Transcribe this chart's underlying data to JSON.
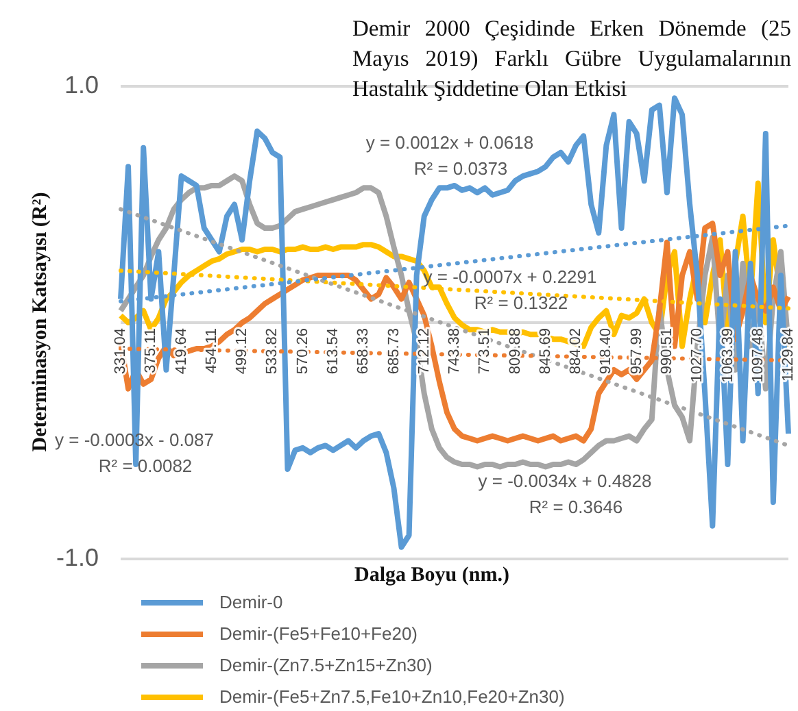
{
  "chart_data": {
    "type": "line",
    "title": "Demir 2000 Çeşidinde Erken Dönemde (25 Mayıs 2019) Farklı Gübre Uygulamalarının Hastalık Şiddetine Olan Etkisi",
    "xlabel": "Dalga Boyu (nm.)",
    "ylabel": "Determinasyon Katsayısı (R²)",
    "categories": [
      "331.04",
      null,
      null,
      null,
      "375.11",
      null,
      null,
      null,
      "419.64",
      null,
      null,
      null,
      "454.11",
      null,
      null,
      null,
      "499.12",
      null,
      null,
      null,
      "533.82",
      null,
      null,
      null,
      "570.26",
      null,
      null,
      null,
      "613.54",
      null,
      null,
      null,
      "658.33",
      null,
      null,
      null,
      "685.73",
      null,
      null,
      null,
      "712.12",
      null,
      null,
      null,
      "743.38",
      null,
      null,
      null,
      "773.51",
      null,
      null,
      null,
      "809.88",
      null,
      null,
      null,
      "845.69",
      null,
      null,
      null,
      "884.02",
      null,
      null,
      null,
      "918.40",
      null,
      null,
      null,
      "957.99",
      null,
      null,
      null,
      "990.51",
      null,
      null,
      null,
      "1027.70",
      null,
      null,
      null,
      "1063.39",
      null,
      null,
      null,
      "1097.48",
      null,
      null,
      null,
      "1129.84"
    ],
    "series": [
      {
        "name": "Demir-0",
        "color": "#5b9bd5",
        "values": [
          0.1,
          0.66,
          -0.6,
          0.74,
          0.1,
          0.3,
          -0.2,
          0.2,
          0.62,
          0.6,
          0.58,
          0.4,
          0.35,
          0.3,
          0.45,
          0.5,
          0.35,
          0.6,
          0.81,
          0.78,
          0.72,
          0.7,
          -0.62,
          -0.54,
          -0.53,
          -0.55,
          -0.53,
          -0.52,
          -0.54,
          -0.52,
          -0.5,
          -0.53,
          -0.5,
          -0.48,
          -0.47,
          -0.55,
          -0.7,
          -0.95,
          -0.9,
          0.2,
          0.45,
          0.52,
          0.57,
          0.57,
          0.58,
          0.56,
          0.57,
          0.55,
          0.57,
          0.54,
          0.55,
          0.56,
          0.6,
          0.62,
          0.63,
          0.64,
          0.66,
          0.7,
          0.72,
          0.68,
          0.75,
          0.79,
          0.5,
          0.38,
          0.75,
          0.88,
          0.4,
          0.85,
          0.8,
          0.6,
          0.9,
          0.92,
          0.55,
          0.95,
          0.88,
          0.5,
          0.2,
          -0.3,
          -0.86,
          0.1,
          -0.6,
          0.3,
          -0.5,
          0.25,
          -0.3,
          0.8,
          -0.76,
          0.2,
          -0.47
        ]
      },
      {
        "name": "Demir-(Fe5+Fe10+Fe20)",
        "color": "#ed7d31",
        "values": [
          -0.08,
          -0.28,
          -0.2,
          -0.26,
          -0.24,
          -0.15,
          -0.1,
          -0.14,
          -0.13,
          -0.12,
          -0.11,
          -0.11,
          -0.1,
          -0.08,
          -0.05,
          -0.03,
          0,
          0.02,
          0.05,
          0.08,
          0.1,
          0.12,
          0.14,
          0.16,
          0.18,
          0.19,
          0.2,
          0.2,
          0.2,
          0.2,
          0.2,
          0.18,
          0.14,
          0.1,
          0.12,
          0.19,
          0.15,
          0.1,
          0.17,
          0.1,
          0.03,
          -0.1,
          -0.25,
          -0.38,
          -0.45,
          -0.48,
          -0.49,
          -0.5,
          -0.49,
          -0.48,
          -0.49,
          -0.5,
          -0.49,
          -0.48,
          -0.49,
          -0.5,
          -0.49,
          -0.48,
          -0.5,
          -0.49,
          -0.48,
          -0.5,
          -0.45,
          -0.3,
          -0.25,
          -0.2,
          -0.22,
          -0.2,
          -0.24,
          -0.2,
          -0.16,
          0.05,
          0.34,
          -0.1,
          0.2,
          0.3,
          0.1,
          0.4,
          0.42,
          0.2,
          0.3,
          -0.07,
          0.05,
          0.2,
          0.1,
          0.05,
          0.15,
          0.05,
          0.11
        ]
      },
      {
        "name": "Demir-(Zn7.5+Zn15+Zn30)",
        "color": "#a5a5a5",
        "values": [
          0.05,
          0.1,
          0.15,
          0.2,
          0.28,
          0.35,
          0.4,
          0.48,
          0.52,
          0.55,
          0.57,
          0.57,
          0.58,
          0.58,
          0.6,
          0.62,
          0.6,
          0.5,
          0.42,
          0.4,
          0.4,
          0.41,
          0.44,
          0.47,
          0.48,
          0.49,
          0.5,
          0.51,
          0.52,
          0.53,
          0.54,
          0.55,
          0.57,
          0.57,
          0.55,
          0.45,
          0.32,
          0.2,
          0.05,
          -0.08,
          -0.3,
          -0.45,
          -0.53,
          -0.57,
          -0.59,
          -0.6,
          -0.6,
          -0.61,
          -0.6,
          -0.6,
          -0.61,
          -0.6,
          -0.6,
          -0.59,
          -0.6,
          -0.6,
          -0.61,
          -0.6,
          -0.6,
          -0.59,
          -0.6,
          -0.58,
          -0.55,
          -0.52,
          -0.5,
          -0.5,
          -0.49,
          -0.48,
          -0.5,
          -0.45,
          -0.41,
          0.07,
          -0.2,
          -0.35,
          -0.4,
          -0.5,
          -0.1,
          0.2,
          0.36,
          -0.1,
          0.2,
          -0.2,
          0.25,
          -0.1,
          0.1,
          -0.28,
          0.1,
          0.3,
          -0.1
        ]
      },
      {
        "name": "Demir-(Fe5+Zn7.5,Fe10+Zn10,Fe20+Zn30)",
        "color": "#ffc000",
        "values": [
          0.03,
          0,
          0.02,
          0.05,
          -0.03,
          0.02,
          0.1,
          0.13,
          0.17,
          0.2,
          0.22,
          0.24,
          0.26,
          0.27,
          0.29,
          0.3,
          0.31,
          0.31,
          0.3,
          0.31,
          0.31,
          0.3,
          0.31,
          0.31,
          0.32,
          0.31,
          0.31,
          0.32,
          0.31,
          0.32,
          0.32,
          0.32,
          0.33,
          0.33,
          0.32,
          0.3,
          0.28,
          0.28,
          0.27,
          0.26,
          0.22,
          0.15,
          0.15,
          0.08,
          0.02,
          -0.01,
          -0.03,
          -0.03,
          -0.04,
          -0.03,
          -0.04,
          -0.04,
          -0.05,
          -0.04,
          -0.05,
          -0.05,
          -0.06,
          -0.07,
          -0.07,
          -0.08,
          -0.09,
          -0.1,
          -0.02,
          0.02,
          0.05,
          -0.05,
          0.03,
          0.02,
          0.04,
          0.1,
          0,
          -0.05,
          0.2,
          0.3,
          -0.1,
          0.1,
          0.25,
          0,
          0.2,
          0.35,
          -0.05,
          0.25,
          0.45,
          0.1,
          0.59,
          0,
          0.35,
          0.1,
          -0.1
        ]
      },
      {
        "type": "line",
        "line_style": "dotted",
        "color": "#5b9bd5",
        "x": [
          "331.04",
          "1129.84"
        ],
        "values": [
          0.09,
          0.41
        ]
      },
      {
        "type": "line",
        "line_style": "dotted",
        "color": "#ed7d31",
        "x": [
          "331.04",
          "1129.84"
        ],
        "values": [
          -0.11,
          -0.16
        ]
      },
      {
        "type": "line",
        "line_style": "dotted",
        "color": "#a5a5a5",
        "x": [
          "331.04",
          "1129.84"
        ],
        "values": [
          0.48,
          -0.52
        ]
      },
      {
        "type": "line",
        "line_style": "dotted",
        "color": "#ffc000",
        "x": [
          "331.04",
          "1129.84"
        ],
        "values": [
          0.22,
          0.06
        ]
      }
    ],
    "ylim": [
      -1,
      1
    ],
    "yticks": [
      {
        "value": 1,
        "label": "1.0"
      },
      {
        "value": 0,
        "label": null
      },
      {
        "value": -1,
        "label": "-1.0"
      }
    ],
    "grid": "y",
    "legend": "bottom",
    "marker": "none",
    "line_style": "solid",
    "annotations": [
      "y = 0.0012x + 0.0618\nR² = 0.0373",
      "y = -0.0007x + 0.2291\nR² = 0.1322",
      "y = -0.0003x - 0.087\nR² = 0.0082",
      "y = -0.0034x + 0.4828\nR² = 0.3646"
    ]
  }
}
